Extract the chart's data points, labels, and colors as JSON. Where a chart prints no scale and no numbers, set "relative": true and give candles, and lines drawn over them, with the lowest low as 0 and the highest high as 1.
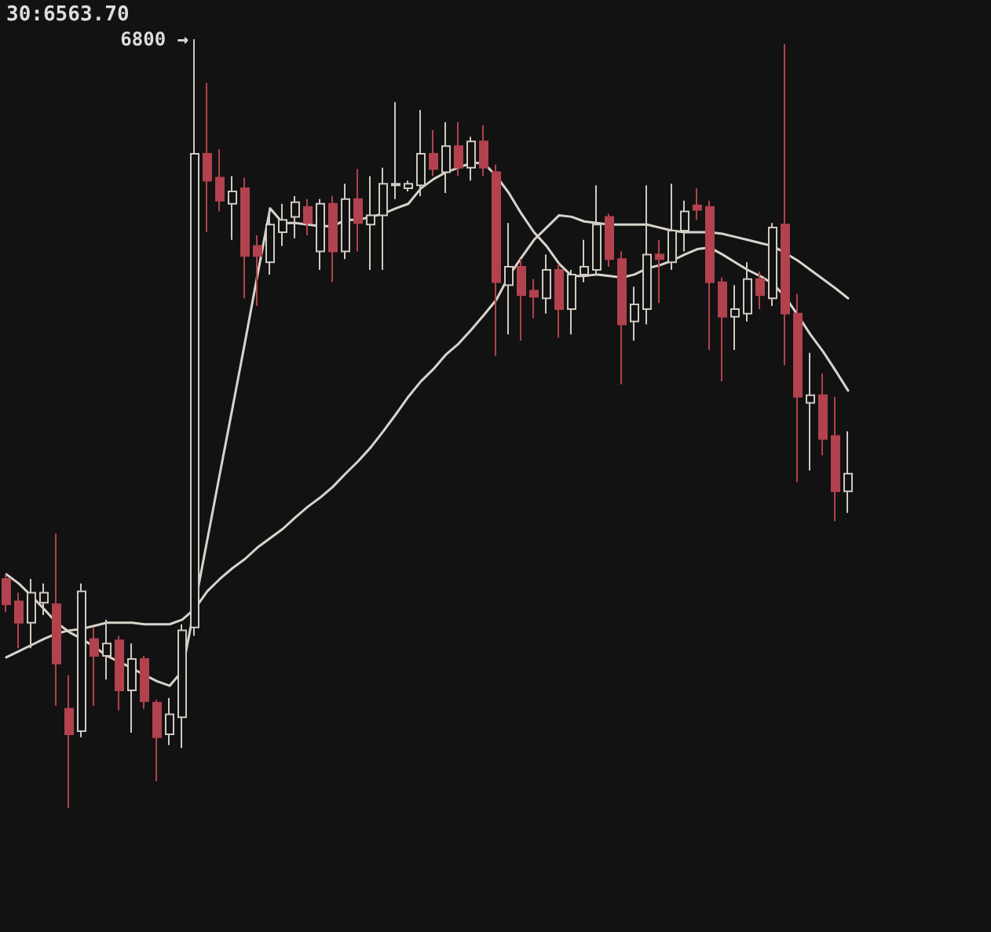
{
  "chart_data": {
    "type": "candlestick",
    "relative": true,
    "categories": [
      null,
      null,
      null,
      null,
      null,
      null,
      null,
      null,
      null,
      null,
      null,
      null,
      null,
      null,
      null,
      null,
      null,
      null,
      null,
      null,
      null,
      null,
      null,
      null,
      null,
      null,
      null,
      null,
      null,
      null,
      null,
      null,
      null,
      null,
      null,
      null,
      null,
      null,
      null,
      null,
      null,
      null,
      null,
      null,
      null,
      null,
      null,
      null,
      null,
      null,
      null,
      null,
      null,
      null,
      null,
      null,
      null,
      null,
      null,
      null,
      null,
      null,
      null,
      null,
      null,
      null,
      null,
      null
    ],
    "ohlc": [
      [
        0.298,
        0.304,
        0.255,
        0.265
      ],
      [
        0.269,
        0.28,
        0.208,
        0.241
      ],
      [
        0.241,
        0.298,
        0.208,
        0.28
      ],
      [
        0.267,
        0.292,
        0.251,
        0.28
      ],
      [
        0.265,
        0.357,
        0.133,
        0.188
      ],
      [
        0.129,
        0.173,
        0,
        0.096
      ],
      [
        0.1,
        0.292,
        0.092,
        0.282
      ],
      [
        0.22,
        0.235,
        0.133,
        0.198
      ],
      [
        0.198,
        0.245,
        0.167,
        0.214
      ],
      [
        0.218,
        0.224,
        0.127,
        0.153
      ],
      [
        0.153,
        0.214,
        0.098,
        0.194
      ],
      [
        0.194,
        0.198,
        0.129,
        0.139
      ],
      [
        0.137,
        0.141,
        0.035,
        0.092
      ],
      [
        0.096,
        0.143,
        0.082,
        0.122
      ],
      [
        0.118,
        0.239,
        0.078,
        0.231
      ],
      [
        0.235,
        1,
        0.224,
        0.851
      ],
      [
        0.851,
        0.943,
        0.749,
        0.816
      ],
      [
        0.82,
        0.857,
        0.776,
        0.79
      ],
      [
        0.786,
        0.822,
        0.739,
        0.802
      ],
      [
        0.806,
        0.82,
        0.663,
        0.718
      ],
      [
        0.731,
        0.745,
        0.653,
        0.718
      ],
      [
        0.71,
        0.78,
        0.694,
        0.759
      ],
      [
        0.749,
        0.786,
        0.731,
        0.765
      ],
      [
        0.769,
        0.796,
        0.741,
        0.788
      ],
      [
        0.782,
        0.792,
        0.745,
        0.761
      ],
      [
        0.724,
        0.792,
        0.7,
        0.786
      ],
      [
        0.786,
        0.796,
        0.684,
        0.724
      ],
      [
        0.724,
        0.812,
        0.714,
        0.792
      ],
      [
        0.792,
        0.831,
        0.724,
        0.761
      ],
      [
        0.759,
        0.822,
        0.7,
        0.771
      ],
      [
        0.771,
        0.833,
        0.7,
        0.812
      ],
      [
        0.81,
        0.918,
        0.792,
        0.812
      ],
      [
        0.806,
        0.816,
        0.802,
        0.812
      ],
      [
        0.81,
        0.908,
        0.796,
        0.851
      ],
      [
        0.851,
        0.882,
        0.822,
        0.831
      ],
      [
        0.827,
        0.892,
        0.8,
        0.861
      ],
      [
        0.861,
        0.892,
        0.822,
        0.833
      ],
      [
        0.833,
        0.873,
        0.816,
        0.867
      ],
      [
        0.867,
        0.888,
        0.822,
        0.833
      ],
      [
        0.827,
        0.837,
        0.588,
        0.684
      ],
      [
        0.68,
        0.761,
        0.616,
        0.704
      ],
      [
        0.704,
        0.714,
        0.608,
        0.667
      ],
      [
        0.673,
        0.688,
        0.637,
        0.665
      ],
      [
        0.663,
        0.72,
        0.643,
        0.7
      ],
      [
        0.7,
        0.708,
        0.612,
        0.649
      ],
      [
        0.649,
        0.7,
        0.616,
        0.694
      ],
      [
        0.694,
        0.739,
        0.684,
        0.704
      ],
      [
        0.7,
        0.81,
        0.694,
        0.759
      ],
      [
        0.769,
        0.773,
        0.704,
        0.714
      ],
      [
        0.714,
        0.724,
        0.551,
        0.629
      ],
      [
        0.633,
        0.678,
        0.608,
        0.655
      ],
      [
        0.649,
        0.81,
        0.629,
        0.72
      ],
      [
        0.72,
        0.739,
        0.657,
        0.714
      ],
      [
        0.71,
        0.812,
        0.7,
        0.751
      ],
      [
        0.751,
        0.79,
        0.724,
        0.776
      ],
      [
        0.784,
        0.806,
        0.765,
        0.778
      ],
      [
        0.782,
        0.79,
        0.596,
        0.684
      ],
      [
        0.684,
        0.69,
        0.555,
        0.639
      ],
      [
        0.639,
        0.68,
        0.596,
        0.649
      ],
      [
        0.643,
        0.71,
        0.633,
        0.688
      ],
      [
        0.688,
        0.698,
        0.649,
        0.667
      ],
      [
        0.663,
        0.761,
        0.653,
        0.755
      ],
      [
        0.759,
        0.994,
        0.576,
        0.643
      ],
      [
        0.643,
        0.669,
        0.424,
        0.535
      ],
      [
        0.527,
        0.592,
        0.439,
        0.537
      ],
      [
        0.537,
        0.565,
        0.459,
        0.48
      ],
      [
        0.484,
        0.535,
        0.373,
        0.412
      ],
      [
        0.412,
        0.49,
        0.384,
        0.435
      ]
    ],
    "colors": [
      "#b2424d",
      "#b2424d",
      "#cfcac2",
      "#cfcac2",
      "#b2424d",
      "#b2424d",
      "#cfcac2",
      "#b2424d",
      "#cfcac2",
      "#b2424d",
      "#cfcac2",
      "#b2424d",
      "#b2424d",
      "#cfcac2",
      "#cfcac2",
      "#cfcac2",
      "#b2424d",
      "#b2424d",
      "#cfcac2",
      "#b2424d",
      "#b2424d",
      "#cfcac2",
      "#cfcac2",
      "#cfcac2",
      "#b2424d",
      "#cfcac2",
      "#b2424d",
      "#cfcac2",
      "#b2424d",
      "#cfcac2",
      "#cfcac2",
      "#cfcac2",
      "#cfcac2",
      "#cfcac2",
      "#b2424d",
      "#cfcac2",
      "#b2424d",
      "#cfcac2",
      "#b2424d",
      "#b2424d",
      "#cfcac2",
      "#b2424d",
      "#b2424d",
      "#cfcac2",
      "#b2424d",
      "#cfcac2",
      "#cfcac2",
      "#cfcac2",
      "#b2424d",
      "#b2424d",
      "#cfcac2",
      "#cfcac2",
      "#b2424d",
      "#cfcac2",
      "#cfcac2",
      "#b2424d",
      "#b2424d",
      "#b2424d",
      "#cfcac2",
      "#cfcac2",
      "#b2424d",
      "#cfcac2",
      "#b2424d",
      "#b2424d",
      "#cfcac2",
      "#b2424d",
      "#b2424d",
      "#cfcac2"
    ],
    "series": [
      {
        "type": "line",
        "color": "#d8d3cb",
        "values": [
          0.304,
          0.292,
          0.276,
          0.259,
          0.241,
          0.229,
          0.22,
          0.21,
          0.198,
          0.19,
          0.182,
          0.173,
          0.165,
          0.159,
          0.178,
          0.263,
          0.349,
          0.435,
          0.52,
          0.606,
          0.694,
          0.78,
          0.761,
          0.761,
          0.759,
          0.757,
          0.757,
          0.765,
          0.765,
          0.769,
          0.773,
          0.78,
          0.786,
          0.806,
          0.818,
          0.827,
          0.833,
          0.839,
          0.839,
          0.822,
          0.8,
          0.773,
          0.749,
          0.731,
          0.708,
          0.692,
          0.692,
          0.694,
          0.692,
          0.69,
          0.694,
          0.702,
          0.706,
          0.712,
          0.72,
          0.727,
          0.729,
          0.72,
          0.71,
          0.7,
          0.692,
          0.682,
          0.665,
          0.641,
          0.616,
          0.594,
          0.569,
          0.543
        ]
      },
      {
        "type": "line",
        "color": "#d8d3cb",
        "values": [
          0.196,
          0.204,
          0.212,
          0.22,
          0.227,
          0.231,
          0.233,
          0.237,
          0.241,
          0.241,
          0.241,
          0.239,
          0.239,
          0.239,
          0.245,
          0.259,
          0.282,
          0.298,
          0.312,
          0.324,
          0.339,
          0.351,
          0.363,
          0.378,
          0.392,
          0.404,
          0.418,
          0.435,
          0.451,
          0.469,
          0.49,
          0.512,
          0.535,
          0.555,
          0.571,
          0.59,
          0.604,
          0.622,
          0.641,
          0.661,
          0.692,
          0.716,
          0.739,
          0.755,
          0.771,
          0.769,
          0.763,
          0.761,
          0.759,
          0.759,
          0.759,
          0.759,
          0.755,
          0.751,
          0.749,
          0.749,
          0.749,
          0.747,
          0.743,
          0.739,
          0.735,
          0.731,
          0.722,
          0.712,
          0.7,
          0.688,
          0.676,
          0.663
        ]
      }
    ],
    "marker": "none",
    "annotations": [
      "30:6563.70",
      "6800 →"
    ]
  }
}
